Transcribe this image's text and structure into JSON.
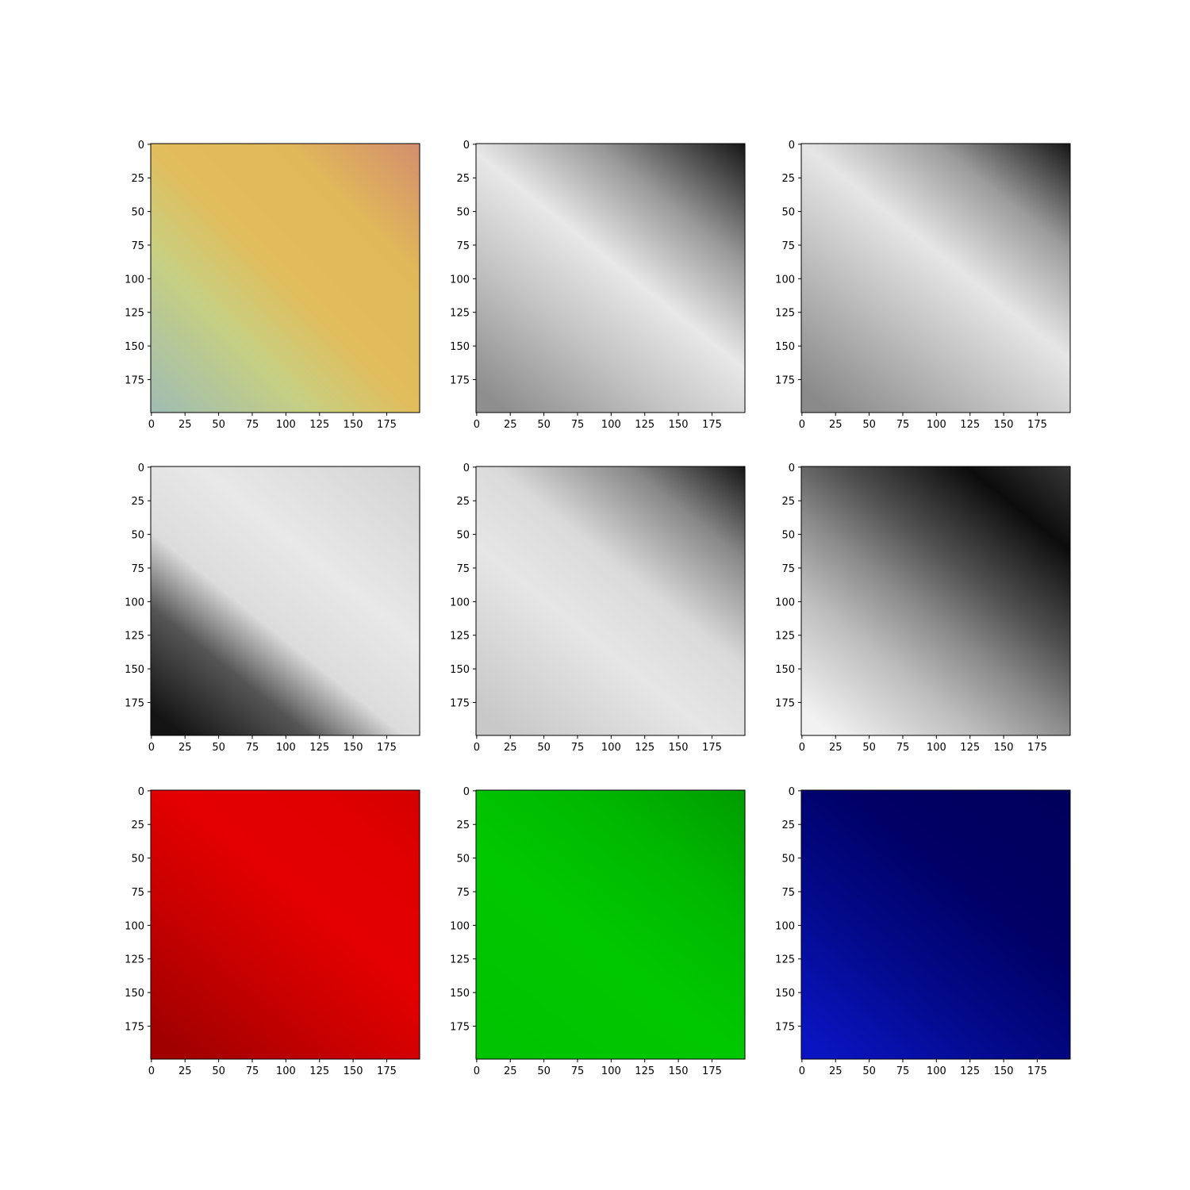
{
  "chart_data": [
    {
      "type": "heatmap",
      "colormap": "rgb-composite",
      "xlim": [
        0,
        199
      ],
      "ylim": [
        199,
        0
      ],
      "xticks": [
        "0",
        "25",
        "50",
        "75",
        "100",
        "125",
        "150",
        "175"
      ],
      "yticks": [
        "0",
        "25",
        "50",
        "75",
        "100",
        "125",
        "150",
        "175"
      ],
      "colors": {
        "top_left": "#e0b85a",
        "top_right": "#d48e6e",
        "center": "#e2bd5c",
        "bottom_left": "#9fbcb4",
        "bottom_right": "#c6cf82"
      }
    },
    {
      "type": "heatmap",
      "colormap": "gray",
      "xlim": [
        0,
        199
      ],
      "ylim": [
        199,
        0
      ],
      "xticks": [
        "0",
        "25",
        "50",
        "75",
        "100",
        "125",
        "150",
        "175"
      ],
      "yticks": [
        "0",
        "25",
        "50",
        "75",
        "100",
        "125",
        "150",
        "175"
      ],
      "band_profile": [
        [
          0.0,
          "#8e8e8e"
        ],
        [
          0.28,
          "#c4c4c4"
        ],
        [
          0.5,
          "#e8e8e8"
        ],
        [
          0.72,
          "#9a9a9a"
        ],
        [
          1.0,
          "#0c0c0c"
        ]
      ]
    },
    {
      "type": "heatmap",
      "colormap": "gray",
      "xlim": [
        0,
        199
      ],
      "ylim": [
        199,
        0
      ],
      "xticks": [
        "0",
        "25",
        "50",
        "75",
        "100",
        "125",
        "150",
        "175"
      ],
      "yticks": [
        "0",
        "25",
        "50",
        "75",
        "100",
        "125",
        "150",
        "175"
      ],
      "band_profile": [
        [
          0.0,
          "#8a8a8a"
        ],
        [
          0.3,
          "#c0c0c0"
        ],
        [
          0.52,
          "#e6e6e6"
        ],
        [
          0.75,
          "#9c9c9c"
        ],
        [
          1.0,
          "#0a0a0a"
        ]
      ]
    },
    {
      "type": "heatmap",
      "colormap": "gray",
      "xlim": [
        0,
        199
      ],
      "ylim": [
        199,
        0
      ],
      "xticks": [
        "0",
        "25",
        "50",
        "75",
        "100",
        "125",
        "150",
        "175"
      ],
      "yticks": [
        "0",
        "25",
        "50",
        "75",
        "100",
        "125",
        "150",
        "175"
      ],
      "band_profile": [
        [
          0.0,
          "#141414"
        ],
        [
          0.22,
          "#555555"
        ],
        [
          0.38,
          "#dcdcdc"
        ],
        [
          0.6,
          "#e8e8e8"
        ],
        [
          1.0,
          "#d2d2d2"
        ]
      ]
    },
    {
      "type": "heatmap",
      "colormap": "gray",
      "xlim": [
        0,
        199
      ],
      "ylim": [
        199,
        0
      ],
      "xticks": [
        "0",
        "25",
        "50",
        "75",
        "100",
        "125",
        "150",
        "175"
      ],
      "yticks": [
        "0",
        "25",
        "50",
        "75",
        "100",
        "125",
        "150",
        "175"
      ],
      "band_profile": [
        [
          0.0,
          "#c8c8c8"
        ],
        [
          0.35,
          "#e6e6e6"
        ],
        [
          0.55,
          "#dadada"
        ],
        [
          0.78,
          "#888888"
        ],
        [
          1.0,
          "#0a0a0a"
        ]
      ]
    },
    {
      "type": "heatmap",
      "colormap": "gray",
      "xlim": [
        0,
        199
      ],
      "ylim": [
        199,
        0
      ],
      "xticks": [
        "0",
        "25",
        "50",
        "75",
        "100",
        "125",
        "150",
        "175"
      ],
      "yticks": [
        "0",
        "25",
        "50",
        "75",
        "100",
        "125",
        "150",
        "175"
      ],
      "band_profile": [
        [
          0.0,
          "#f2f2f2"
        ],
        [
          0.25,
          "#bdbdbd"
        ],
        [
          0.42,
          "#8a8a8a"
        ],
        [
          0.58,
          "#505050"
        ],
        [
          0.8,
          "#0c0c0c"
        ],
        [
          1.0,
          "#3a3a3a"
        ]
      ]
    },
    {
      "type": "heatmap",
      "colormap": "red-channel",
      "xlim": [
        0,
        199
      ],
      "ylim": [
        199,
        0
      ],
      "xticks": [
        "0",
        "25",
        "50",
        "75",
        "100",
        "125",
        "150",
        "175"
      ],
      "yticks": [
        "0",
        "25",
        "50",
        "75",
        "100",
        "125",
        "150",
        "175"
      ],
      "band_profile": [
        [
          0.0,
          "#a00000"
        ],
        [
          0.3,
          "#c80000"
        ],
        [
          0.55,
          "#e40000"
        ],
        [
          0.8,
          "#e00000"
        ],
        [
          1.0,
          "#d20000"
        ]
      ]
    },
    {
      "type": "heatmap",
      "colormap": "green-channel",
      "xlim": [
        0,
        199
      ],
      "ylim": [
        199,
        0
      ],
      "xticks": [
        "0",
        "25",
        "50",
        "75",
        "100",
        "125",
        "150",
        "175"
      ],
      "yticks": [
        "0",
        "25",
        "50",
        "75",
        "100",
        "125",
        "150",
        "175"
      ],
      "band_profile": [
        [
          0.0,
          "#00c200"
        ],
        [
          0.4,
          "#00c800"
        ],
        [
          0.7,
          "#00b800"
        ],
        [
          1.0,
          "#009a00"
        ]
      ]
    },
    {
      "type": "heatmap",
      "colormap": "blue-channel",
      "xlim": [
        0,
        199
      ],
      "ylim": [
        199,
        0
      ],
      "xticks": [
        "0",
        "25",
        "50",
        "75",
        "100",
        "125",
        "150",
        "175"
      ],
      "yticks": [
        "0",
        "25",
        "50",
        "75",
        "100",
        "125",
        "150",
        "175"
      ],
      "band_profile": [
        [
          0.0,
          "#0a14c0"
        ],
        [
          0.3,
          "#030a8c"
        ],
        [
          0.6,
          "#000066"
        ],
        [
          1.0,
          "#00005a"
        ]
      ]
    }
  ]
}
